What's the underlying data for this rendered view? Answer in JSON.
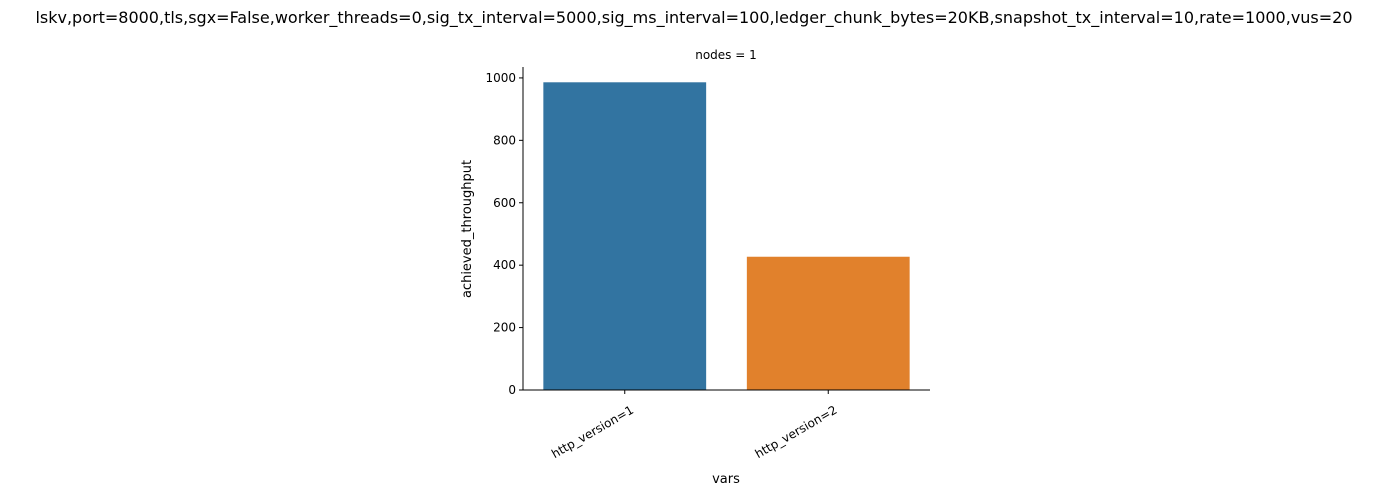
{
  "chart_data": {
    "type": "bar",
    "title": "lskv,port=8000,tls,sgx=False,worker_threads=0,sig_tx_interval=5000,sig_ms_interval=100,ledger_chunk_bytes=20KB,snapshot_tx_interval=10,rate=1000,vus=20",
    "subtitle": "nodes = 1",
    "xlabel": "vars",
    "ylabel": "achieved_throughput",
    "categories": [
      "http_version=1",
      "http_version=2"
    ],
    "values": [
      986,
      427
    ],
    "colors": [
      "#3274a1",
      "#e1812c"
    ],
    "ylim": [
      0,
      1035
    ],
    "yticks": [
      0,
      200,
      400,
      600,
      800,
      1000
    ],
    "grid": false,
    "legend": "none"
  }
}
